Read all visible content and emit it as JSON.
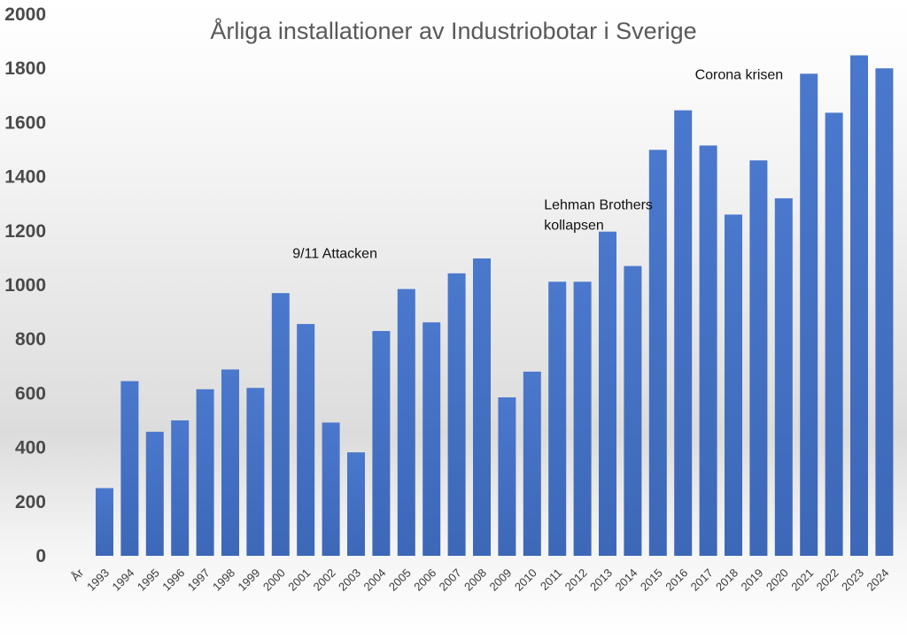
{
  "chart_data": {
    "type": "bar",
    "title": "Årliga installationer av Industriobotar i Sverige",
    "x_axis_first_label": "År",
    "categories": [
      "1993",
      "1994",
      "1995",
      "1996",
      "1997",
      "1998",
      "1999",
      "2000",
      "2001",
      "2002",
      "2003",
      "2004",
      "2005",
      "2006",
      "2007",
      "2008",
      "2009",
      "2010",
      "2011",
      "2012",
      "2013",
      "2014",
      "2015",
      "2016",
      "2017",
      "2018",
      "2019",
      "2020",
      "2021",
      "2022",
      "2023",
      "2024"
    ],
    "values": [
      250,
      645,
      458,
      500,
      615,
      688,
      620,
      970,
      856,
      492,
      382,
      830,
      985,
      862,
      1043,
      1098,
      585,
      680,
      1012,
      1012,
      1197,
      1070,
      1499,
      1645,
      1515,
      1260,
      1460,
      1320,
      1780,
      1636,
      1848,
      1800
    ],
    "ylim": [
      0,
      2000
    ],
    "yticks": [
      0,
      200,
      400,
      600,
      800,
      1000,
      1200,
      1400,
      1600,
      1800,
      2000
    ],
    "grid": false,
    "bar_color": "#4472C4",
    "annotations": [
      {
        "text": [
          "9/11 Attacken"
        ],
        "category": "2001",
        "y": 1100
      },
      {
        "text": [
          "Lehman Brothers",
          "kollapsen"
        ],
        "category": "2011",
        "y": 1280
      },
      {
        "text": [
          "Corona krisen"
        ],
        "category": "2017",
        "y": 1760
      }
    ]
  }
}
